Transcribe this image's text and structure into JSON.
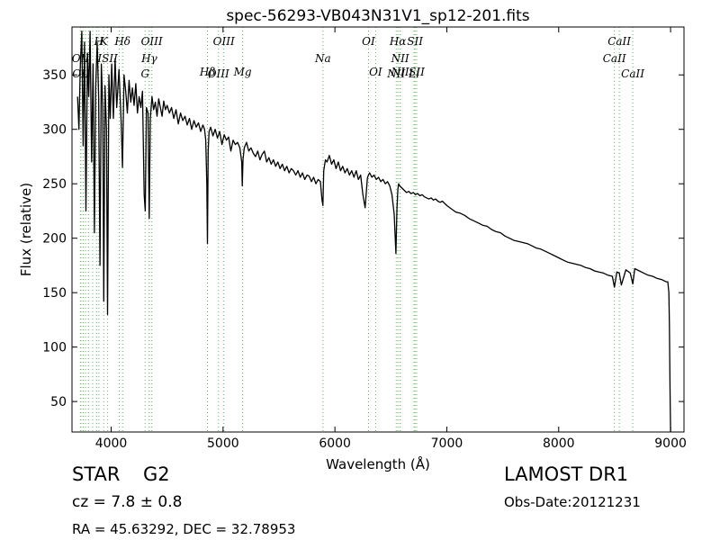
{
  "chart_data": {
    "type": "line",
    "title": "spec-56293-VB043N31V1_sp12-201.fits",
    "xlabel": "Wavelength (Å)",
    "ylabel": "Flux (relative)",
    "xlim": [
      3650,
      9120
    ],
    "ylim": [
      22,
      394
    ],
    "x_ticks": [
      4000,
      5000,
      6000,
      7000,
      8000,
      9000
    ],
    "y_ticks": [
      50,
      100,
      150,
      200,
      250,
      300,
      350
    ],
    "grid": false,
    "line_color": "#000000",
    "marker_color": "#5fb85f",
    "spectrum": {
      "name": "",
      "x": [
        3700,
        3712,
        3725,
        3738,
        3750,
        3762,
        3775,
        3788,
        3800,
        3812,
        3825,
        3838,
        3850,
        3862,
        3875,
        3888,
        3900,
        3912,
        3925,
        3934,
        3945,
        3958,
        3968,
        3980,
        3992,
        4005,
        4020,
        4035,
        4050,
        4070,
        4090,
        4101,
        4115,
        4130,
        4145,
        4160,
        4175,
        4190,
        4205,
        4220,
        4235,
        4250,
        4265,
        4280,
        4295,
        4305,
        4315,
        4330,
        4340,
        4350,
        4365,
        4380,
        4395,
        4410,
        4425,
        4440,
        4455,
        4470,
        4485,
        4500,
        4520,
        4540,
        4560,
        4580,
        4600,
        4620,
        4640,
        4660,
        4680,
        4700,
        4720,
        4740,
        4760,
        4780,
        4800,
        4820,
        4835,
        4845,
        4855,
        4861,
        4867,
        4875,
        4890,
        4910,
        4930,
        4950,
        4970,
        4990,
        5010,
        5030,
        5050,
        5070,
        5090,
        5110,
        5130,
        5150,
        5167,
        5172,
        5178,
        5190,
        5210,
        5230,
        5250,
        5270,
        5290,
        5310,
        5330,
        5350,
        5370,
        5390,
        5410,
        5430,
        5450,
        5470,
        5490,
        5510,
        5530,
        5550,
        5570,
        5590,
        5610,
        5630,
        5650,
        5670,
        5690,
        5710,
        5730,
        5750,
        5770,
        5790,
        5810,
        5830,
        5850,
        5870,
        5885,
        5893,
        5900,
        5915,
        5930,
        5950,
        5970,
        5990,
        6010,
        6030,
        6050,
        6070,
        6090,
        6110,
        6130,
        6150,
        6170,
        6190,
        6210,
        6230,
        6250,
        6270,
        6290,
        6300,
        6310,
        6330,
        6350,
        6370,
        6390,
        6410,
        6430,
        6450,
        6470,
        6490,
        6510,
        6530,
        6545,
        6555,
        6563,
        6570,
        6580,
        6600,
        6620,
        6640,
        6660,
        6680,
        6700,
        6720,
        6740,
        6760,
        6780,
        6800,
        6820,
        6840,
        6860,
        6880,
        6900,
        6920,
        6940,
        6960,
        6980,
        7000,
        7040,
        7080,
        7120,
        7160,
        7200,
        7240,
        7280,
        7320,
        7360,
        7400,
        7440,
        7480,
        7520,
        7560,
        7600,
        7640,
        7680,
        7720,
        7760,
        7800,
        7840,
        7880,
        7920,
        7960,
        8000,
        8040,
        8080,
        8120,
        8160,
        8200,
        8240,
        8280,
        8320,
        8360,
        8400,
        8440,
        8480,
        8498,
        8520,
        8542,
        8560,
        8600,
        8640,
        8662,
        8680,
        8720,
        8760,
        8800,
        8840,
        8880,
        8920,
        8960,
        8975,
        8985,
        8990,
        8995,
        9000
      ],
      "y": [
        330,
        300,
        360,
        390,
        285,
        380,
        225,
        370,
        330,
        390,
        270,
        360,
        205,
        340,
        380,
        330,
        175,
        360,
        320,
        142,
        340,
        300,
        130,
        350,
        310,
        360,
        310,
        365,
        320,
        355,
        305,
        265,
        350,
        335,
        315,
        345,
        325,
        338,
        322,
        342,
        315,
        330,
        320,
        335,
        240,
        225,
        320,
        315,
        218,
        310,
        330,
        318,
        325,
        312,
        328,
        320,
        312,
        326,
        318,
        322,
        315,
        320,
        310,
        318,
        305,
        315,
        308,
        312,
        304,
        310,
        300,
        308,
        302,
        306,
        298,
        304,
        300,
        290,
        250,
        195,
        280,
        298,
        302,
        294,
        300,
        292,
        298,
        286,
        295,
        290,
        293,
        280,
        290,
        286,
        288,
        283,
        270,
        248,
        272,
        283,
        288,
        280,
        283,
        278,
        275,
        280,
        272,
        277,
        280,
        270,
        274,
        268,
        272,
        266,
        270,
        264,
        268,
        262,
        266,
        260,
        264,
        262,
        258,
        262,
        256,
        260,
        254,
        258,
        257,
        252,
        256,
        250,
        254,
        252,
        235,
        230,
        262,
        272,
        270,
        276,
        268,
        272,
        264,
        270,
        262,
        266,
        260,
        264,
        258,
        262,
        256,
        262,
        254,
        258,
        240,
        228,
        255,
        258,
        260,
        256,
        258,
        254,
        256,
        252,
        254,
        250,
        252,
        248,
        240,
        222,
        186,
        228,
        245,
        250,
        248,
        246,
        244,
        242,
        243,
        241,
        242,
        240,
        241,
        239,
        240,
        238,
        237,
        236,
        237,
        235,
        236,
        234,
        233,
        234,
        232,
        230,
        227,
        224,
        223,
        221,
        218,
        216,
        214,
        212,
        211,
        208,
        206,
        205,
        202,
        200,
        198,
        197,
        196,
        195,
        193,
        191,
        190,
        188,
        186,
        184,
        182,
        180,
        178,
        177,
        176,
        175,
        173,
        172,
        170,
        169,
        168,
        166,
        165,
        155,
        169,
        168,
        157,
        171,
        168,
        158,
        172,
        170,
        168,
        166,
        165,
        163,
        162,
        160,
        160,
        150,
        120,
        60,
        20
      ]
    },
    "line_markers": [
      {
        "x": 3726,
        "label": "OII",
        "row": 2,
        "anchor": "middle"
      },
      {
        "x": 3730,
        "label": "OII",
        "row": 3,
        "anchor": "middle"
      },
      {
        "x": 3750,
        "label": "",
        "row": 0,
        "anchor": "middle"
      },
      {
        "x": 3771,
        "label": "",
        "row": 0,
        "anchor": "middle"
      },
      {
        "x": 3798,
        "label": "",
        "row": 0,
        "anchor": "middle"
      },
      {
        "x": 3835,
        "label": "",
        "row": 0,
        "anchor": "middle"
      },
      {
        "x": 3869,
        "label": "",
        "row": 0,
        "anchor": "middle"
      },
      {
        "x": 3889,
        "label": "H",
        "row": 1,
        "anchor": "middle"
      },
      {
        "x": 3934,
        "label": "K",
        "row": 1,
        "anchor": "middle"
      },
      {
        "x": 3969,
        "label": "ISII",
        "row": 2,
        "anchor": "middle"
      },
      {
        "x": 4072,
        "label": "",
        "row": 0,
        "anchor": "middle"
      },
      {
        "x": 4102,
        "label": "Hδ",
        "row": 1,
        "anchor": "middle"
      },
      {
        "x": 4304,
        "label": "G",
        "row": 3,
        "anchor": "middle"
      },
      {
        "x": 4341,
        "label": "Hγ",
        "row": 2,
        "anchor": "middle"
      },
      {
        "x": 4363,
        "label": "OIII",
        "row": 1,
        "anchor": "middle"
      },
      {
        "x": 4861,
        "label": "Hβ",
        "row": 4,
        "anchor": "middle"
      },
      {
        "x": 4959,
        "label": "OIII",
        "row": 3,
        "anchor": "middle"
      },
      {
        "x": 5007,
        "label": "OIII",
        "row": 1,
        "anchor": "middle"
      },
      {
        "x": 5175,
        "label": "Mg",
        "row": 4,
        "anchor": "middle"
      },
      {
        "x": 5893,
        "label": "Na",
        "row": 2,
        "anchor": "middle"
      },
      {
        "x": 6300,
        "label": "OI",
        "row": 1,
        "anchor": "middle"
      },
      {
        "x": 6364,
        "label": "OI",
        "row": 4,
        "anchor": "middle"
      },
      {
        "x": 6548,
        "label": "NII",
        "row": 3,
        "anchor": "middle"
      },
      {
        "x": 6563,
        "label": "Hα",
        "row": 1,
        "anchor": "middle"
      },
      {
        "x": 6583,
        "label": "NII",
        "row": 4,
        "anchor": "middle"
      },
      {
        "x": 6583,
        "label": "NII",
        "row": 2,
        "anchor": "middle"
      },
      {
        "x": 6707,
        "label": "Li",
        "row": 3,
        "anchor": "middle"
      },
      {
        "x": 6716,
        "label": "SII",
        "row": 1,
        "anchor": "middle"
      },
      {
        "x": 6731,
        "label": "SII",
        "row": 4,
        "anchor": "middle"
      },
      {
        "x": 8498,
        "label": "CaII",
        "row": 2,
        "anchor": "middle"
      },
      {
        "x": 8542,
        "label": "CaII",
        "row": 1,
        "anchor": "middle"
      },
      {
        "x": 8662,
        "label": "CaII",
        "row": 3,
        "anchor": "middle"
      }
    ]
  },
  "footer": {
    "object_class": "STAR",
    "subclass": "G2",
    "redshift": "cz = 7.8 ± 0.8",
    "coordinates": "RA = 45.63292, DEC = 32.78953",
    "survey": "LAMOST DR1",
    "obs_date": "Obs-Date:20121231"
  }
}
